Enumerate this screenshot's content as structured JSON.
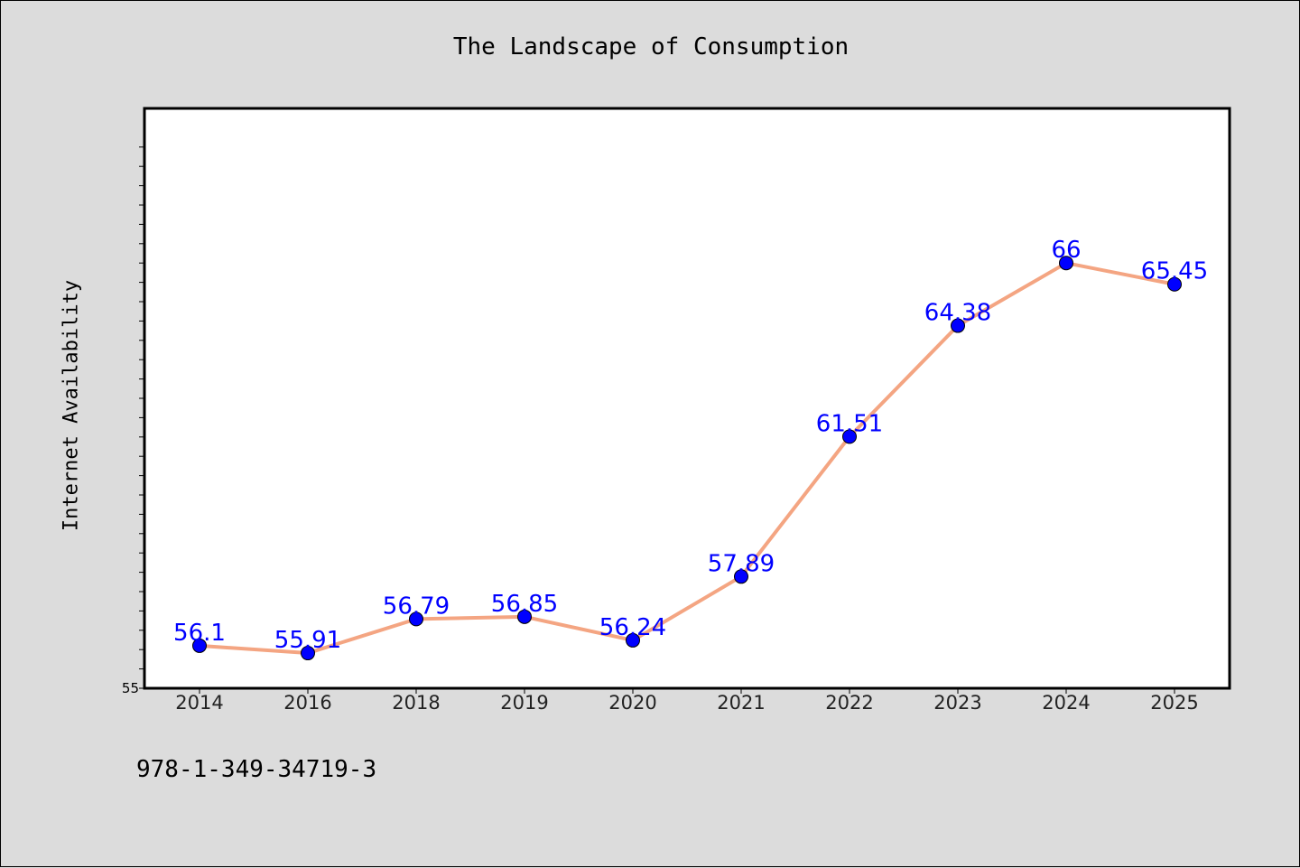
{
  "chart_data": {
    "type": "line",
    "title": "The Landscape of Consumption",
    "xlabel": "",
    "ylabel": "Internet Availability",
    "categories": [
      "2014",
      "2016",
      "2018",
      "2019",
      "2020",
      "2021",
      "2022",
      "2023",
      "2024",
      "2025"
    ],
    "series": [
      {
        "values": [
          56.1,
          55.91,
          56.79,
          56.85,
          56.24,
          57.89,
          61.51,
          64.38,
          66,
          65.45
        ],
        "data_labels": [
          "56.1",
          "55.91",
          "56.79",
          "56.85",
          "56.24",
          "57.89",
          "61.51",
          "64.38",
          "66",
          "65.45"
        ],
        "line_color": "#f4a582",
        "marker_color": "#0000ff"
      }
    ],
    "ylim": [
      55,
      70
    ],
    "y_min_label": "55",
    "grid": false,
    "legend": "none",
    "background_color": "#ffffff",
    "figure_color": "#dcdcdc"
  },
  "footnote": "978-1-349-34719-3"
}
